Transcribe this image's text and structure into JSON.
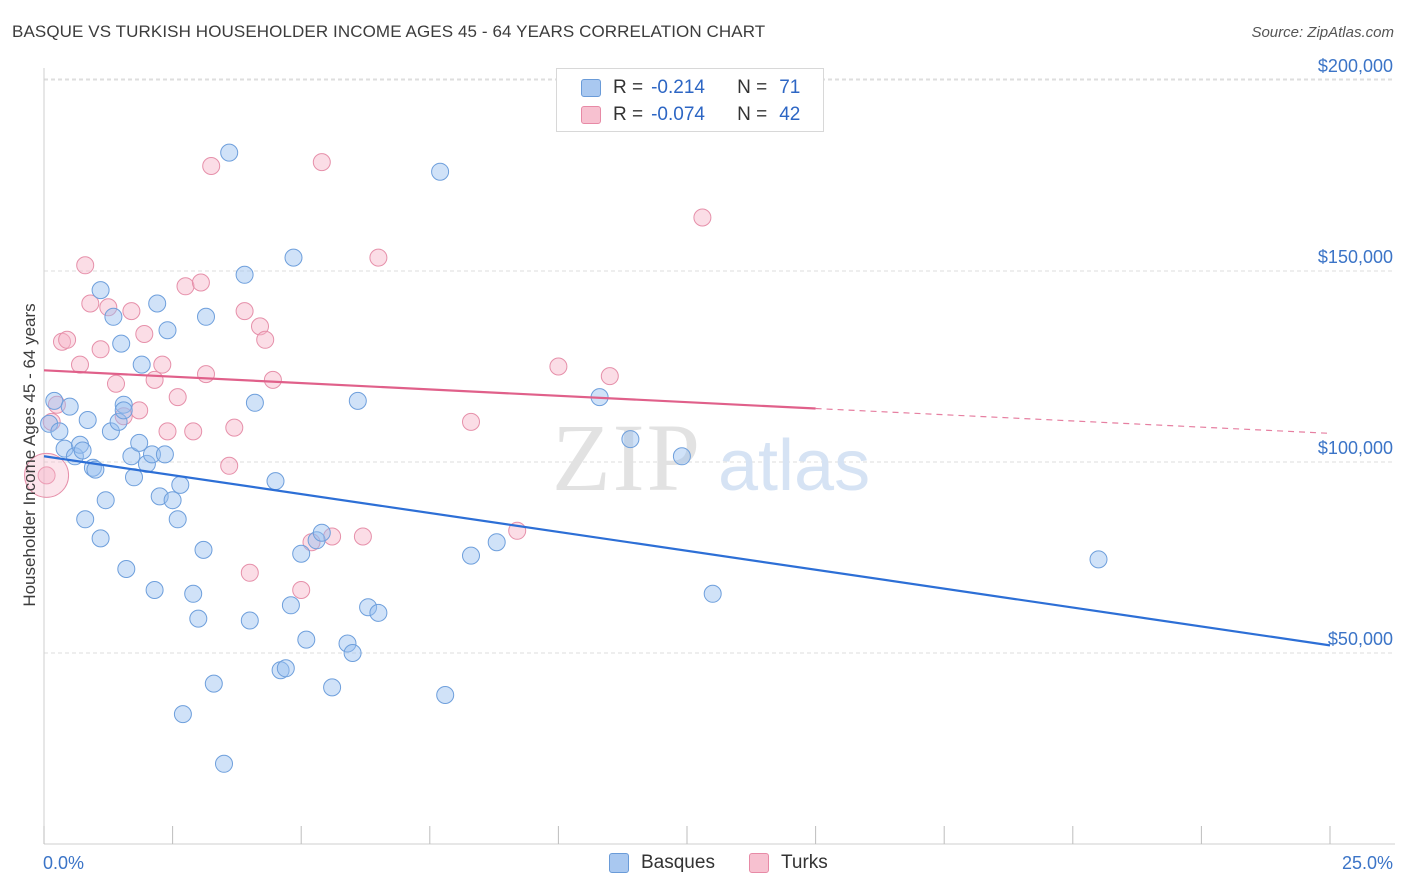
{
  "header": {
    "title": "BASQUE VS TURKISH HOUSEHOLDER INCOME AGES 45 - 64 YEARS CORRELATION CHART",
    "source": "Source: ZipAtlas.com"
  },
  "watermark": {
    "zip": "ZIP",
    "atlas": "atlas"
  },
  "legend": {
    "rows": [
      {
        "r_label": "R =",
        "r_value": "-0.214",
        "n_label": "N =",
        "n_value": "71",
        "color": "#a9c8f0",
        "border": "#6a9bd8"
      },
      {
        "r_label": "R =",
        "r_value": "-0.074",
        "n_label": "N =",
        "n_value": "42",
        "color": "#f7c1d0",
        "border": "#e78aa6"
      }
    ]
  },
  "bottom_legend": [
    {
      "label": "Basques",
      "color": "#a9c8f0",
      "border": "#6a9bd8"
    },
    {
      "label": "Turks",
      "color": "#f7c1d0",
      "border": "#e78aa6"
    }
  ],
  "colors": {
    "basque_fill": "rgba(150,190,240,0.45)",
    "basque_stroke": "#6e9fdc",
    "basque_line": "#2d6fd6",
    "turk_fill": "rgba(247,180,200,0.45)",
    "turk_stroke": "#e690aa",
    "turk_line": "#e0608a",
    "axis_text": "#3b74c7",
    "grid": "#dedede"
  },
  "chart_data": {
    "type": "scatter",
    "title": "BASQUE VS TURKISH HOUSEHOLDER INCOME AGES 45 - 64 YEARS CORRELATION CHART",
    "xlabel": "",
    "ylabel": "Householder Income Ages 45 - 64 years",
    "xlim": [
      0,
      25
    ],
    "ylim": [
      0,
      210000
    ],
    "x_tick_labels": [
      "0.0%",
      "25.0%"
    ],
    "y_ticks": [
      50000,
      100000,
      150000,
      200000
    ],
    "y_tick_labels": [
      "$50,000",
      "$100,000",
      "$150,000",
      "$200,000"
    ],
    "grid": true,
    "legend_position": "top-center",
    "series": [
      {
        "name": "Basques",
        "r": -0.214,
        "n": 71,
        "trend": {
          "x": [
            0,
            25
          ],
          "y": [
            101500,
            52000
          ],
          "dashed_from": null
        },
        "points": [
          [
            0.1,
            110000
          ],
          [
            0.2,
            116000
          ],
          [
            0.3,
            108000
          ],
          [
            0.4,
            103500
          ],
          [
            0.5,
            114500
          ],
          [
            0.6,
            101500
          ],
          [
            0.7,
            104500
          ],
          [
            0.8,
            85000
          ],
          [
            0.85,
            111000
          ],
          [
            0.95,
            98500
          ],
          [
            1.0,
            98000
          ],
          [
            1.1,
            80000
          ],
          [
            1.2,
            90000
          ],
          [
            1.3,
            108000
          ],
          [
            1.35,
            138000
          ],
          [
            1.45,
            110500
          ],
          [
            1.5,
            131000
          ],
          [
            1.55,
            115000
          ],
          [
            1.6,
            72000
          ],
          [
            1.1,
            145000
          ],
          [
            1.7,
            101500
          ],
          [
            1.75,
            96000
          ],
          [
            1.85,
            105000
          ],
          [
            1.9,
            125500
          ],
          [
            2.0,
            99500
          ],
          [
            2.1,
            102000
          ],
          [
            2.15,
            66500
          ],
          [
            2.2,
            141500
          ],
          [
            2.25,
            91000
          ],
          [
            2.35,
            102000
          ],
          [
            2.4,
            134500
          ],
          [
            2.5,
            90000
          ],
          [
            2.6,
            85000
          ],
          [
            2.65,
            94000
          ],
          [
            2.7,
            34000
          ],
          [
            2.9,
            65500
          ],
          [
            3.0,
            59000
          ],
          [
            3.1,
            77000
          ],
          [
            3.15,
            138000
          ],
          [
            3.3,
            42000
          ],
          [
            3.5,
            21000
          ],
          [
            3.6,
            181000
          ],
          [
            3.9,
            149000
          ],
          [
            4.0,
            58500
          ],
          [
            4.1,
            115500
          ],
          [
            4.5,
            95000
          ],
          [
            4.6,
            45500
          ],
          [
            4.7,
            46000
          ],
          [
            4.8,
            62500
          ],
          [
            4.85,
            153500
          ],
          [
            5.0,
            76000
          ],
          [
            5.1,
            53500
          ],
          [
            5.3,
            79500
          ],
          [
            5.4,
            81500
          ],
          [
            5.6,
            41000
          ],
          [
            5.9,
            52500
          ],
          [
            6.0,
            50000
          ],
          [
            6.1,
            116000
          ],
          [
            6.3,
            62000
          ],
          [
            6.5,
            60500
          ],
          [
            7.8,
            39000
          ],
          [
            7.7,
            176000
          ],
          [
            8.3,
            75500
          ],
          [
            8.8,
            79000
          ],
          [
            10.8,
            117000
          ],
          [
            11.4,
            106000
          ],
          [
            12.4,
            101500
          ],
          [
            13.0,
            65500
          ],
          [
            20.5,
            74500
          ],
          [
            1.55,
            113500
          ],
          [
            0.75,
            103000
          ]
        ]
      },
      {
        "name": "Turks",
        "r": -0.074,
        "n": 42,
        "trend": {
          "x": [
            0,
            15,
            25
          ],
          "y": [
            124000,
            114000,
            107500
          ],
          "dashed_from": 15
        },
        "points": [
          [
            0.05,
            96500
          ],
          [
            0.25,
            115000
          ],
          [
            0.35,
            131500
          ],
          [
            0.45,
            132000
          ],
          [
            0.7,
            125500
          ],
          [
            0.8,
            151500
          ],
          [
            0.9,
            141500
          ],
          [
            1.1,
            129500
          ],
          [
            1.25,
            140500
          ],
          [
            1.4,
            120500
          ],
          [
            1.55,
            112000
          ],
          [
            1.7,
            139500
          ],
          [
            1.85,
            113500
          ],
          [
            1.95,
            133500
          ],
          [
            2.15,
            121500
          ],
          [
            2.3,
            125500
          ],
          [
            2.4,
            108000
          ],
          [
            2.6,
            117000
          ],
          [
            2.75,
            146000
          ],
          [
            2.9,
            108000
          ],
          [
            3.05,
            147000
          ],
          [
            3.15,
            123000
          ],
          [
            3.25,
            177500
          ],
          [
            3.6,
            99000
          ],
          [
            3.7,
            109000
          ],
          [
            3.9,
            139500
          ],
          [
            4.0,
            71000
          ],
          [
            4.2,
            135500
          ],
          [
            4.3,
            132000
          ],
          [
            4.45,
            121500
          ],
          [
            5.0,
            66500
          ],
          [
            5.2,
            79000
          ],
          [
            5.4,
            178500
          ],
          [
            5.6,
            80500
          ],
          [
            6.2,
            80500
          ],
          [
            6.5,
            153500
          ],
          [
            8.3,
            110500
          ],
          [
            9.2,
            82000
          ],
          [
            10.0,
            125000
          ],
          [
            11.0,
            122500
          ],
          [
            12.8,
            164000
          ],
          [
            0.15,
            110500
          ]
        ]
      }
    ]
  }
}
